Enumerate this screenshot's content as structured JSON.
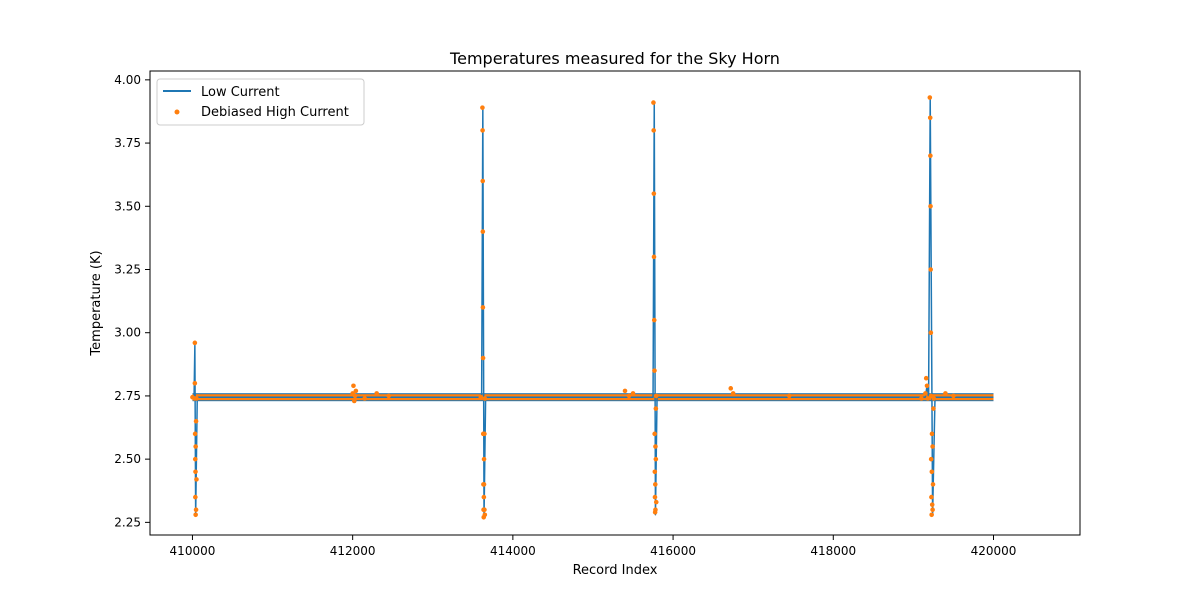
{
  "chart_data": {
    "type": "line",
    "title": "Temperatures measured for the Sky Horn",
    "xlabel": "Record Index",
    "ylabel": "Temperature (K)",
    "xlim": [
      409470,
      421080
    ],
    "ylim": [
      2.2,
      4.035
    ],
    "x_ticks": [
      410000,
      412000,
      414000,
      416000,
      418000,
      420000
    ],
    "x_tick_labels": [
      "410000",
      "412000",
      "414000",
      "416000",
      "418000",
      "420000"
    ],
    "y_ticks": [
      2.25,
      2.5,
      2.75,
      3.0,
      3.25,
      3.5,
      3.75,
      4.0
    ],
    "y_tick_labels": [
      "2.25",
      "2.50",
      "2.75",
      "3.00",
      "3.25",
      "3.50",
      "3.75",
      "4.00"
    ],
    "grid": false,
    "legend_position": "upper left",
    "baseline": 2.745,
    "series": [
      {
        "name": "Low Current",
        "style": "line",
        "color": "#1f77b4",
        "x": [
          410000,
          410020,
          410030,
          410040,
          410060,
          412000,
          412050,
          413600,
          413610,
          413625,
          413640,
          413660,
          413680,
          415700,
          415750,
          415765,
          415780,
          415800,
          415820,
          417000,
          419150,
          419170,
          419190,
          419210,
          419240,
          419270,
          419300,
          420000
        ],
        "y": [
          2.745,
          2.745,
          2.95,
          2.28,
          2.745,
          2.745,
          2.745,
          2.745,
          2.745,
          3.89,
          2.27,
          2.745,
          2.745,
          2.745,
          2.745,
          3.91,
          2.28,
          2.745,
          2.745,
          2.745,
          2.745,
          2.79,
          2.745,
          3.93,
          2.28,
          2.745,
          2.745,
          2.745
        ]
      },
      {
        "name": "Debiased High Current",
        "style": "scatter",
        "color": "#ff7f0e",
        "x": [
          410000,
          410025,
          410030,
          410030,
          410033,
          410035,
          410036,
          410038,
          410040,
          410040,
          410045,
          410045,
          410050,
          410050,
          412000,
          412010,
          412020,
          412030,
          412040,
          412150,
          412300,
          412450,
          413600,
          413620,
          413622,
          413624,
          413625,
          413626,
          413628,
          413630,
          413632,
          413634,
          413636,
          413638,
          413640,
          413640,
          413645,
          413645,
          413650,
          413650,
          415400,
          415450,
          415500,
          415755,
          415758,
          415760,
          415762,
          415765,
          415768,
          415770,
          415772,
          415774,
          415776,
          415778,
          415780,
          415780,
          415785,
          415785,
          415790,
          415790,
          416720,
          416750,
          417450,
          419100,
          419150,
          419160,
          419170,
          419180,
          419205,
          419210,
          419212,
          419214,
          419216,
          419218,
          419220,
          419222,
          419225,
          419228,
          419230,
          419232,
          419235,
          419240,
          419240,
          419245,
          419250,
          419255,
          419400,
          419500
        ],
        "y": [
          2.745,
          2.74,
          2.96,
          2.8,
          2.6,
          2.5,
          2.35,
          2.45,
          2.28,
          2.55,
          2.3,
          2.65,
          2.42,
          2.74,
          2.76,
          2.79,
          2.73,
          2.75,
          2.77,
          2.74,
          2.76,
          2.75,
          2.745,
          3.89,
          3.8,
          3.6,
          3.4,
          3.1,
          2.9,
          2.6,
          2.4,
          2.3,
          2.27,
          2.35,
          2.5,
          2.4,
          2.3,
          2.6,
          2.28,
          2.74,
          2.77,
          2.75,
          2.76,
          3.91,
          3.8,
          3.55,
          3.3,
          3.05,
          2.85,
          2.6,
          2.45,
          2.35,
          2.29,
          2.4,
          2.55,
          2.3,
          2.5,
          2.7,
          2.33,
          2.75,
          2.78,
          2.76,
          2.75,
          2.74,
          2.76,
          2.82,
          2.79,
          2.74,
          3.93,
          3.85,
          3.7,
          3.5,
          3.25,
          3.0,
          2.75,
          2.5,
          2.35,
          2.28,
          2.45,
          2.6,
          2.32,
          2.3,
          2.55,
          2.4,
          2.7,
          2.74,
          2.76,
          2.75
        ]
      }
    ]
  }
}
